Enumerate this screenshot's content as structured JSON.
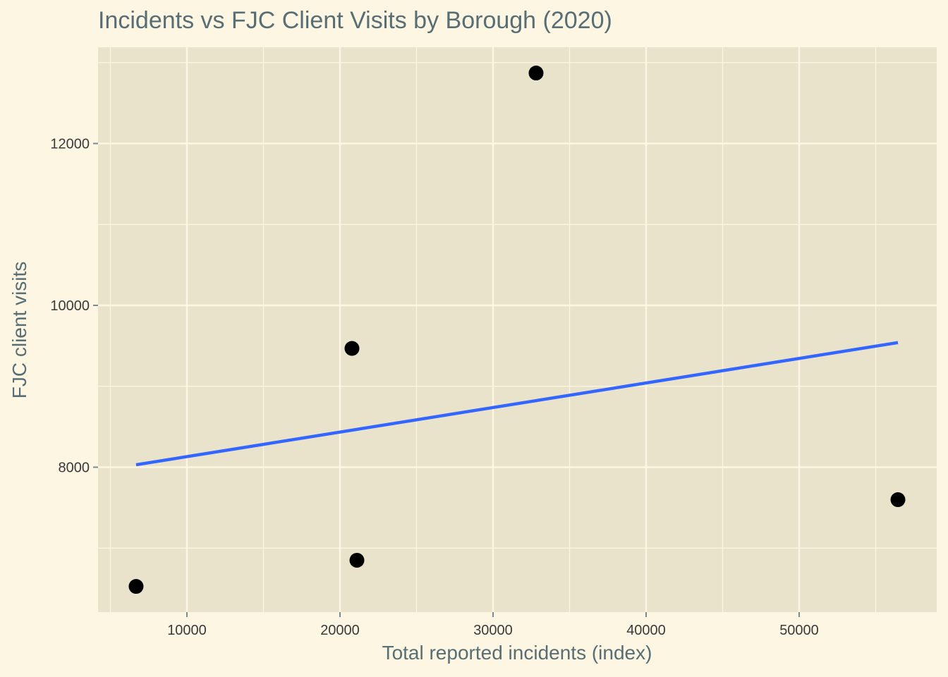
{
  "chart_data": {
    "type": "scatter",
    "title": "Incidents vs FJC Client Visits by Borough (2020)",
    "xlabel": "Total reported incidents (index)",
    "ylabel": "FJC client visits",
    "x_ticks": [
      10000,
      20000,
      30000,
      40000,
      50000
    ],
    "y_ticks": [
      8000,
      10000,
      12000
    ],
    "xlim": [
      4200,
      59000
    ],
    "ylim": [
      6300,
      13300
    ],
    "grid": true,
    "legend": "none",
    "series": [
      {
        "name": "boroughs",
        "points": [
          {
            "x": 6680,
            "y": 6527
          },
          {
            "x": 21106,
            "y": 6850
          },
          {
            "x": 20783,
            "y": 9468
          },
          {
            "x": 32811,
            "y": 12871
          },
          {
            "x": 56452,
            "y": 7599
          }
        ],
        "color": "#000000"
      },
      {
        "name": "linear fit",
        "type": "line",
        "points": [
          {
            "x": 6680,
            "y": 8030
          },
          {
            "x": 56452,
            "y": 9540
          }
        ],
        "color": "#3366ff"
      }
    ]
  },
  "colors": {
    "background": "#fdf6e3",
    "panel": "#eae3cb",
    "grid": "#fdf6e3",
    "text": "#586e75",
    "points": "#000000",
    "fit_line": "#3366ff"
  }
}
